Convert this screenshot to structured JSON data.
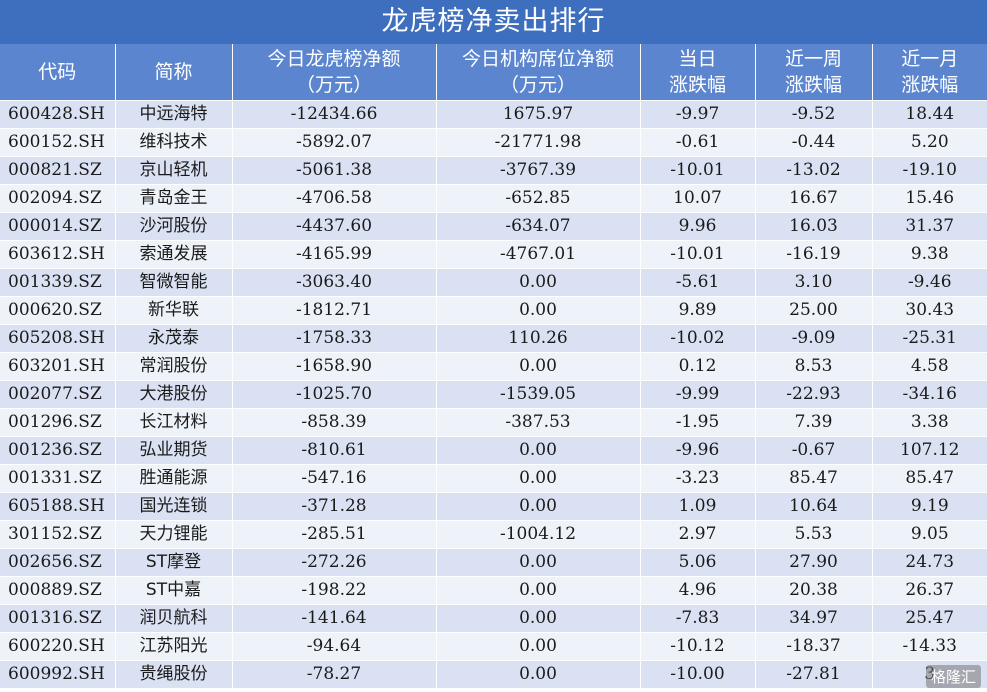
{
  "title": "龙虎榜净卖出排行",
  "headers": [
    [
      "代码"
    ],
    [
      "简称"
    ],
    [
      "今日龙虎榜净额",
      "（万元）"
    ],
    [
      "今日机构席位净额",
      "（万元）"
    ],
    [
      "当日",
      "涨跌幅"
    ],
    [
      "近一周",
      "涨跌幅"
    ],
    [
      "近一月",
      "涨跌幅"
    ]
  ],
  "rows": [
    [
      "600428.SH",
      "中远海特",
      "-12434.66",
      "1675.97",
      "-9.97",
      "-9.52",
      "18.44"
    ],
    [
      "600152.SH",
      "维科技术",
      "-5892.07",
      "-21771.98",
      "-0.61",
      "-0.44",
      "5.20"
    ],
    [
      "000821.SZ",
      "京山轻机",
      "-5061.38",
      "-3767.39",
      "-10.01",
      "-13.02",
      "-19.10"
    ],
    [
      "002094.SZ",
      "青岛金王",
      "-4706.58",
      "-652.85",
      "10.07",
      "16.67",
      "15.46"
    ],
    [
      "000014.SZ",
      "沙河股份",
      "-4437.60",
      "-634.07",
      "9.96",
      "16.03",
      "31.37"
    ],
    [
      "603612.SH",
      "索通发展",
      "-4165.99",
      "-4767.01",
      "-10.01",
      "-16.19",
      "9.38"
    ],
    [
      "001339.SZ",
      "智微智能",
      "-3063.40",
      "0.00",
      "-5.61",
      "3.10",
      "-9.46"
    ],
    [
      "000620.SZ",
      "新华联",
      "-1812.71",
      "0.00",
      "9.89",
      "25.00",
      "30.43"
    ],
    [
      "605208.SH",
      "永茂泰",
      "-1758.33",
      "110.26",
      "-10.02",
      "-9.09",
      "-25.31"
    ],
    [
      "603201.SH",
      "常润股份",
      "-1658.90",
      "0.00",
      "0.12",
      "8.53",
      "4.58"
    ],
    [
      "002077.SZ",
      "大港股份",
      "-1025.70",
      "-1539.05",
      "-9.99",
      "-22.93",
      "-34.16"
    ],
    [
      "001296.SZ",
      "长江材料",
      "-858.39",
      "-387.53",
      "-1.95",
      "7.39",
      "3.38"
    ],
    [
      "001236.SZ",
      "弘业期货",
      "-810.61",
      "0.00",
      "-9.96",
      "-0.67",
      "107.12"
    ],
    [
      "001331.SZ",
      "胜通能源",
      "-547.16",
      "0.00",
      "-3.23",
      "85.47",
      "85.47"
    ],
    [
      "605188.SH",
      "国光连锁",
      "-371.28",
      "0.00",
      "1.09",
      "10.64",
      "9.19"
    ],
    [
      "301152.SZ",
      "天力锂能",
      "-285.51",
      "-1004.12",
      "2.97",
      "5.53",
      "9.05"
    ],
    [
      "002656.SZ",
      "ST摩登",
      "-272.26",
      "0.00",
      "5.06",
      "27.90",
      "24.73"
    ],
    [
      "000889.SZ",
      "ST中嘉",
      "-198.22",
      "0.00",
      "4.96",
      "20.38",
      "26.37"
    ],
    [
      "001316.SZ",
      "润贝航科",
      "-141.64",
      "0.00",
      "-7.83",
      "34.97",
      "25.47"
    ],
    [
      "600220.SH",
      "江苏阳光",
      "-94.64",
      "0.00",
      "-10.12",
      "-18.37",
      "-14.33"
    ],
    [
      "600992.SH",
      "贵绳股份",
      "-78.27",
      "0.00",
      "-10.00",
      "-27.81",
      "3"
    ]
  ],
  "watermark": "格隆汇"
}
